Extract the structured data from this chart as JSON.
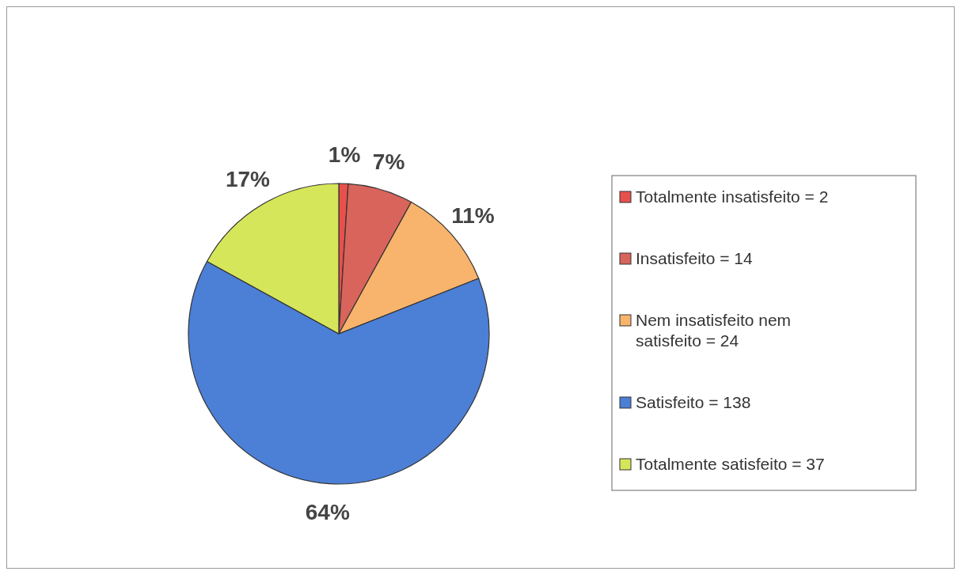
{
  "chart_data": {
    "type": "pie",
    "categories": [
      "Totalmente insatisfeito = 2",
      "Insatisfeito = 14",
      "Nem insatisfeito nem satisfeito = 24",
      "Satisfeito = 138",
      "Totalmente satisfeito = 37"
    ],
    "values": [
      1,
      7,
      11,
      64,
      17
    ],
    "value_labels": [
      "1%",
      "7%",
      "11%",
      "64%",
      "17%"
    ],
    "colors": [
      "#e8504c",
      "#d8645c",
      "#f8b46c",
      "#4c7fd6",
      "#d6e65a"
    ],
    "legend": "right"
  }
}
